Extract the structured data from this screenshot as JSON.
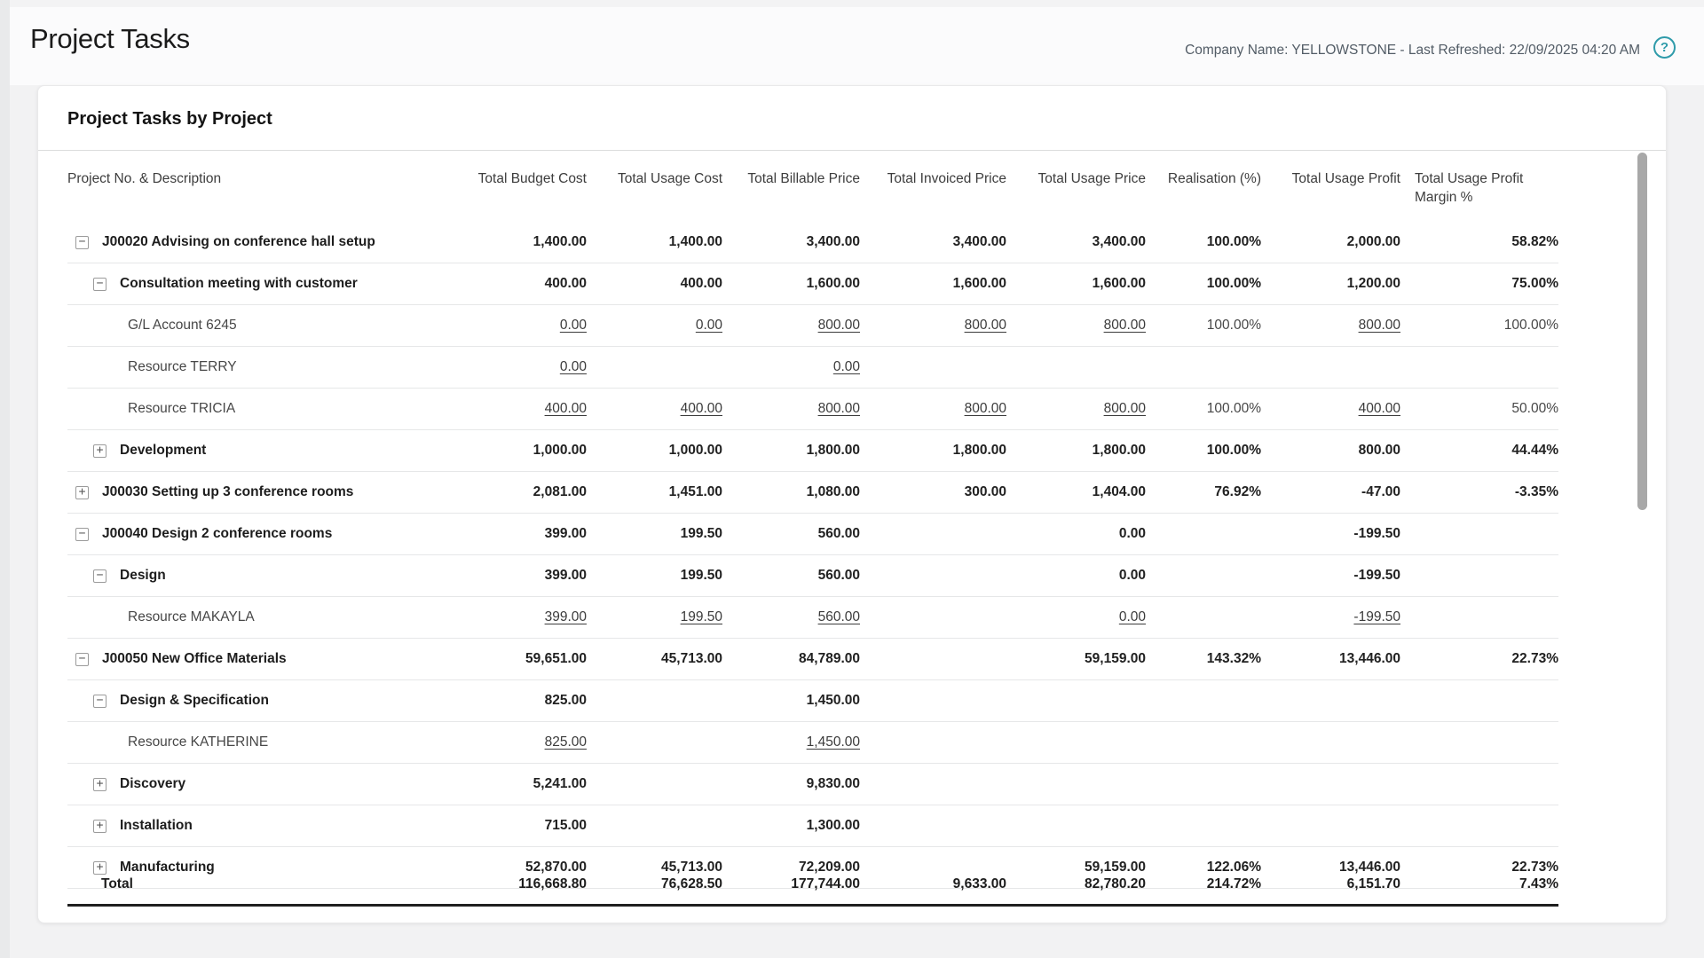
{
  "page": {
    "title": "Project Tasks",
    "meta": "Company Name: YELLOWSTONE - Last Refreshed: 22/09/2025 04:20 AM",
    "help_icon": {
      "glyph": "?",
      "color": "#2f9baa"
    }
  },
  "report": {
    "title": "Project Tasks by Project",
    "columns": [
      "Project No. & Description",
      "Total Budget Cost",
      "Total Usage Cost",
      "Total Billable Price",
      "Total Invoiced Price",
      "Total Usage Price",
      "Realisation (%)",
      "Total Usage Profit",
      "Total Usage Profit Margin %"
    ],
    "rows": [
      {
        "label": "J00020 Advising on conference hall setup",
        "level": 0,
        "toggle": "collapse",
        "bold": true,
        "values": [
          "1,400.00",
          "1,400.00",
          "3,400.00",
          "3,400.00",
          "3,400.00",
          "100.00%",
          "2,000.00",
          "58.82%"
        ]
      },
      {
        "label": "Consultation meeting with customer",
        "level": 1,
        "toggle": "collapse",
        "bold": true,
        "values": [
          "400.00",
          "400.00",
          "1,600.00",
          "1,600.00",
          "1,600.00",
          "100.00%",
          "1,200.00",
          "75.00%"
        ]
      },
      {
        "label": "G/L Account 6245",
        "level": 2,
        "toggle": null,
        "bold": false,
        "values": [
          {
            "t": "0.00",
            "u": true
          },
          {
            "t": "0.00",
            "u": true
          },
          {
            "t": "800.00",
            "u": true
          },
          {
            "t": "800.00",
            "u": true
          },
          {
            "t": "800.00",
            "u": true
          },
          "100.00%",
          {
            "t": "800.00",
            "u": true
          },
          "100.00%"
        ]
      },
      {
        "label": "Resource TERRY",
        "level": 2,
        "toggle": null,
        "bold": false,
        "values": [
          {
            "t": "0.00",
            "u": true
          },
          "",
          {
            "t": "0.00",
            "u": true
          },
          "",
          "",
          "",
          "",
          ""
        ]
      },
      {
        "label": "Resource TRICIA",
        "level": 2,
        "toggle": null,
        "bold": false,
        "values": [
          {
            "t": "400.00",
            "u": true
          },
          {
            "t": "400.00",
            "u": true
          },
          {
            "t": "800.00",
            "u": true
          },
          {
            "t": "800.00",
            "u": true
          },
          {
            "t": "800.00",
            "u": true
          },
          "100.00%",
          {
            "t": "400.00",
            "u": true
          },
          "50.00%"
        ]
      },
      {
        "label": "Development",
        "level": 1,
        "toggle": "expand",
        "bold": true,
        "values": [
          "1,000.00",
          "1,000.00",
          "1,800.00",
          "1,800.00",
          "1,800.00",
          "100.00%",
          "800.00",
          "44.44%"
        ]
      },
      {
        "label": "J00030 Setting up 3 conference rooms",
        "level": 0,
        "toggle": "expand",
        "bold": true,
        "values": [
          "2,081.00",
          "1,451.00",
          "1,080.00",
          "300.00",
          "1,404.00",
          "76.92%",
          "-47.00",
          "-3.35%"
        ]
      },
      {
        "label": "J00040 Design 2 conference rooms",
        "level": 0,
        "toggle": "collapse",
        "bold": true,
        "values": [
          "399.00",
          "199.50",
          "560.00",
          "",
          "0.00",
          "",
          "-199.50",
          ""
        ]
      },
      {
        "label": "Design",
        "level": 1,
        "toggle": "collapse",
        "bold": true,
        "values": [
          "399.00",
          "199.50",
          "560.00",
          "",
          "0.00",
          "",
          "-199.50",
          ""
        ]
      },
      {
        "label": "Resource MAKAYLA",
        "level": 2,
        "toggle": null,
        "bold": false,
        "values": [
          {
            "t": "399.00",
            "u": true
          },
          {
            "t": "199.50",
            "u": true
          },
          {
            "t": "560.00",
            "u": true
          },
          "",
          {
            "t": "0.00",
            "u": true
          },
          "",
          {
            "t": "-199.50",
            "u": true
          },
          ""
        ]
      },
      {
        "label": "J00050 New Office Materials",
        "level": 0,
        "toggle": "collapse",
        "bold": true,
        "values": [
          "59,651.00",
          "45,713.00",
          "84,789.00",
          "",
          "59,159.00",
          "143.32%",
          "13,446.00",
          "22.73%"
        ]
      },
      {
        "label": "Design & Specification",
        "level": 1,
        "toggle": "collapse",
        "bold": true,
        "values": [
          "825.00",
          "",
          "1,450.00",
          "",
          "",
          "",
          "",
          ""
        ]
      },
      {
        "label": "Resource KATHERINE",
        "level": 2,
        "toggle": null,
        "bold": false,
        "values": [
          {
            "t": "825.00",
            "u": true
          },
          "",
          {
            "t": "1,450.00",
            "u": true
          },
          "",
          "",
          "",
          "",
          ""
        ]
      },
      {
        "label": "Discovery",
        "level": 1,
        "toggle": "expand",
        "bold": true,
        "values": [
          "5,241.00",
          "",
          "9,830.00",
          "",
          "",
          "",
          "",
          ""
        ]
      },
      {
        "label": "Installation",
        "level": 1,
        "toggle": "expand",
        "bold": true,
        "values": [
          "715.00",
          "",
          "1,300.00",
          "",
          "",
          "",
          "",
          ""
        ]
      },
      {
        "label": "Manufacturing",
        "level": 1,
        "toggle": "expand",
        "bold": true,
        "values": [
          "52,870.00",
          "45,713.00",
          "72,209.00",
          "",
          "59,159.00",
          "122.06%",
          "13,446.00",
          "22.73%"
        ]
      }
    ],
    "total": {
      "label": "Total",
      "values": [
        "116,668.80",
        "76,628.50",
        "177,744.00",
        "9,633.00",
        "82,780.20",
        "214.72%",
        "6,151.70",
        "7.43%"
      ]
    },
    "toggle_glyphs": {
      "collapse": "−",
      "expand": "+"
    }
  },
  "colors": {
    "accent_teal": "#2f9baa",
    "card_background": "#ffffff",
    "page_background": "#f2f2f3",
    "row_separator": "#e6e7e8",
    "total_border": "#1f1f1f",
    "scrollbar_thumb": "#a8a8a8"
  }
}
